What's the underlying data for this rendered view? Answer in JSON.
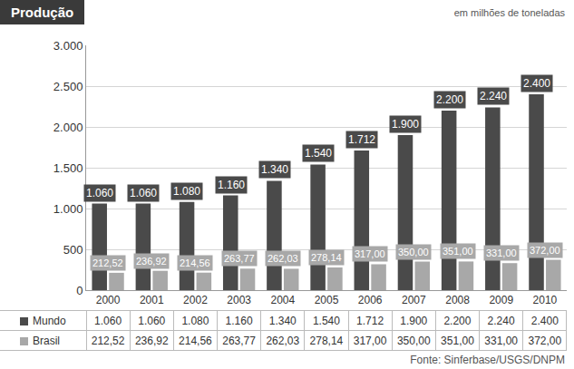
{
  "chart_data": {
    "type": "bar",
    "title": "Produção",
    "ylabel": "em milhões de toneladas",
    "source": "Fonte: Sinferbase/USGS/DNPM",
    "categories": [
      "2000",
      "2001",
      "2002",
      "2003",
      "2004",
      "2005",
      "2006",
      "2007",
      "2008",
      "2009",
      "2010"
    ],
    "series": [
      {
        "name": "Mundo",
        "color": "#4a4a4a",
        "values": [
          1060,
          1060,
          1080,
          1160,
          1340,
          1540,
          1712,
          1900,
          2200,
          2240,
          2400
        ],
        "value_labels": [
          "1.060",
          "1.060",
          "1.080",
          "1.160",
          "1.340",
          "1.540",
          "1.712",
          "1.900",
          "2.200",
          "2.240",
          "2.400"
        ]
      },
      {
        "name": "Brasil",
        "color": "#a8a8a8",
        "values": [
          212.52,
          236.92,
          214.56,
          263.77,
          262.03,
          278.14,
          317.0,
          350.0,
          351.0,
          331.0,
          372.0
        ],
        "value_labels": [
          "212,52",
          "236,92",
          "214,56",
          "263,77",
          "262,03",
          "278,14",
          "317,00",
          "350,00",
          "351,00",
          "331,00",
          "372,00"
        ]
      }
    ],
    "ylim": [
      0,
      3000
    ],
    "yticks": [
      0,
      500,
      {
        "value": 1000,
        "label": "1.000"
      },
      {
        "value": 1500,
        "label": "1.500"
      },
      {
        "value": 2000,
        "label": "2.000"
      },
      {
        "value": 2500,
        "label": "2.500"
      },
      {
        "value": 3000,
        "label": "3.000"
      }
    ],
    "grid": true,
    "data_labels": true
  }
}
